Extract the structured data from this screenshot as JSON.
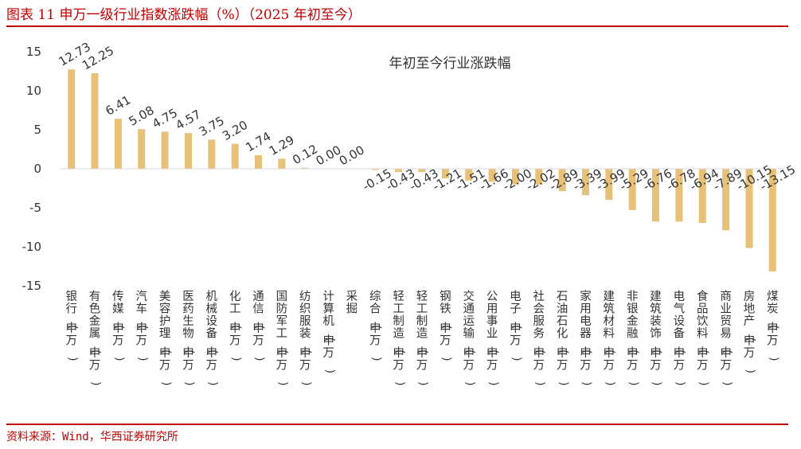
{
  "header": {
    "title": "图表 11 申万一级行业指数涨跌幅（%）（2025 年初至今）"
  },
  "footer": {
    "source": "资料来源：Wind，华西证券研究所"
  },
  "colors": {
    "accent": "#c00000",
    "bar": "#e7c177",
    "axis": "#d9d9d9",
    "text": "#333333"
  },
  "chart_data": {
    "type": "bar",
    "title": "年初至今行业涨跌幅",
    "xlabel": "",
    "ylabel": "",
    "ylim": [
      -15,
      15
    ],
    "yticks": [
      15,
      10,
      5,
      0,
      -5,
      -10,
      -15
    ],
    "grid": false,
    "legend": "none",
    "categories": [
      "银行(申万)",
      "有色金属(申万)",
      "传媒(申万)",
      "汽车(申万)",
      "美容护理(申万)",
      "医药生物(申万)",
      "机械设备(申万)",
      "化工(申万)",
      "通信(申万)",
      "国防军工(申万)",
      "纺织服装(申万)",
      "计算机(申万)",
      "采掘",
      "综合(申万)",
      "轻工制造(申万)",
      "轻工制造(申万)",
      "钢铁(申万)",
      "交通运输(申万)",
      "公用事业(申万)",
      "电子(申万)",
      "社会服务(申万)",
      "石油石化(申万)",
      "家用电器(申万)",
      "建筑材料(申万)",
      "非银金融(申万)",
      "建筑装饰(申万)",
      "电气设备(申万)",
      "食品饮料(申万)",
      "商业贸易(申万)",
      "房地产(申万)",
      "煤炭(申万)"
    ],
    "values": [
      12.73,
      12.25,
      6.41,
      5.08,
      4.75,
      4.57,
      3.75,
      3.2,
      1.74,
      1.29,
      0.12,
      0.0,
      0.0,
      -0.15,
      -0.43,
      -0.43,
      -1.21,
      -1.51,
      -1.66,
      -2.0,
      -2.02,
      -2.89,
      -3.39,
      -3.99,
      -5.29,
      -6.76,
      -6.78,
      -6.94,
      -7.89,
      -10.15,
      -13.15
    ],
    "data_labels": [
      "12.73",
      "12.25",
      "6.41",
      "5.08",
      "4.75",
      "4.57",
      "3.75",
      "3.20",
      "1.74",
      "1.29",
      "0.12",
      "0.00",
      "0.00",
      "-0.15",
      "-0.43",
      "-0.43",
      "-1.21",
      "-1.51",
      "-1.66",
      "-2.00",
      "-2.02",
      "-2.89",
      "-3.39",
      "-3.99",
      "-5.29",
      "-6.76",
      "-6.78",
      "-6.94",
      "-7.89",
      "-10.15",
      "-13.15"
    ]
  }
}
